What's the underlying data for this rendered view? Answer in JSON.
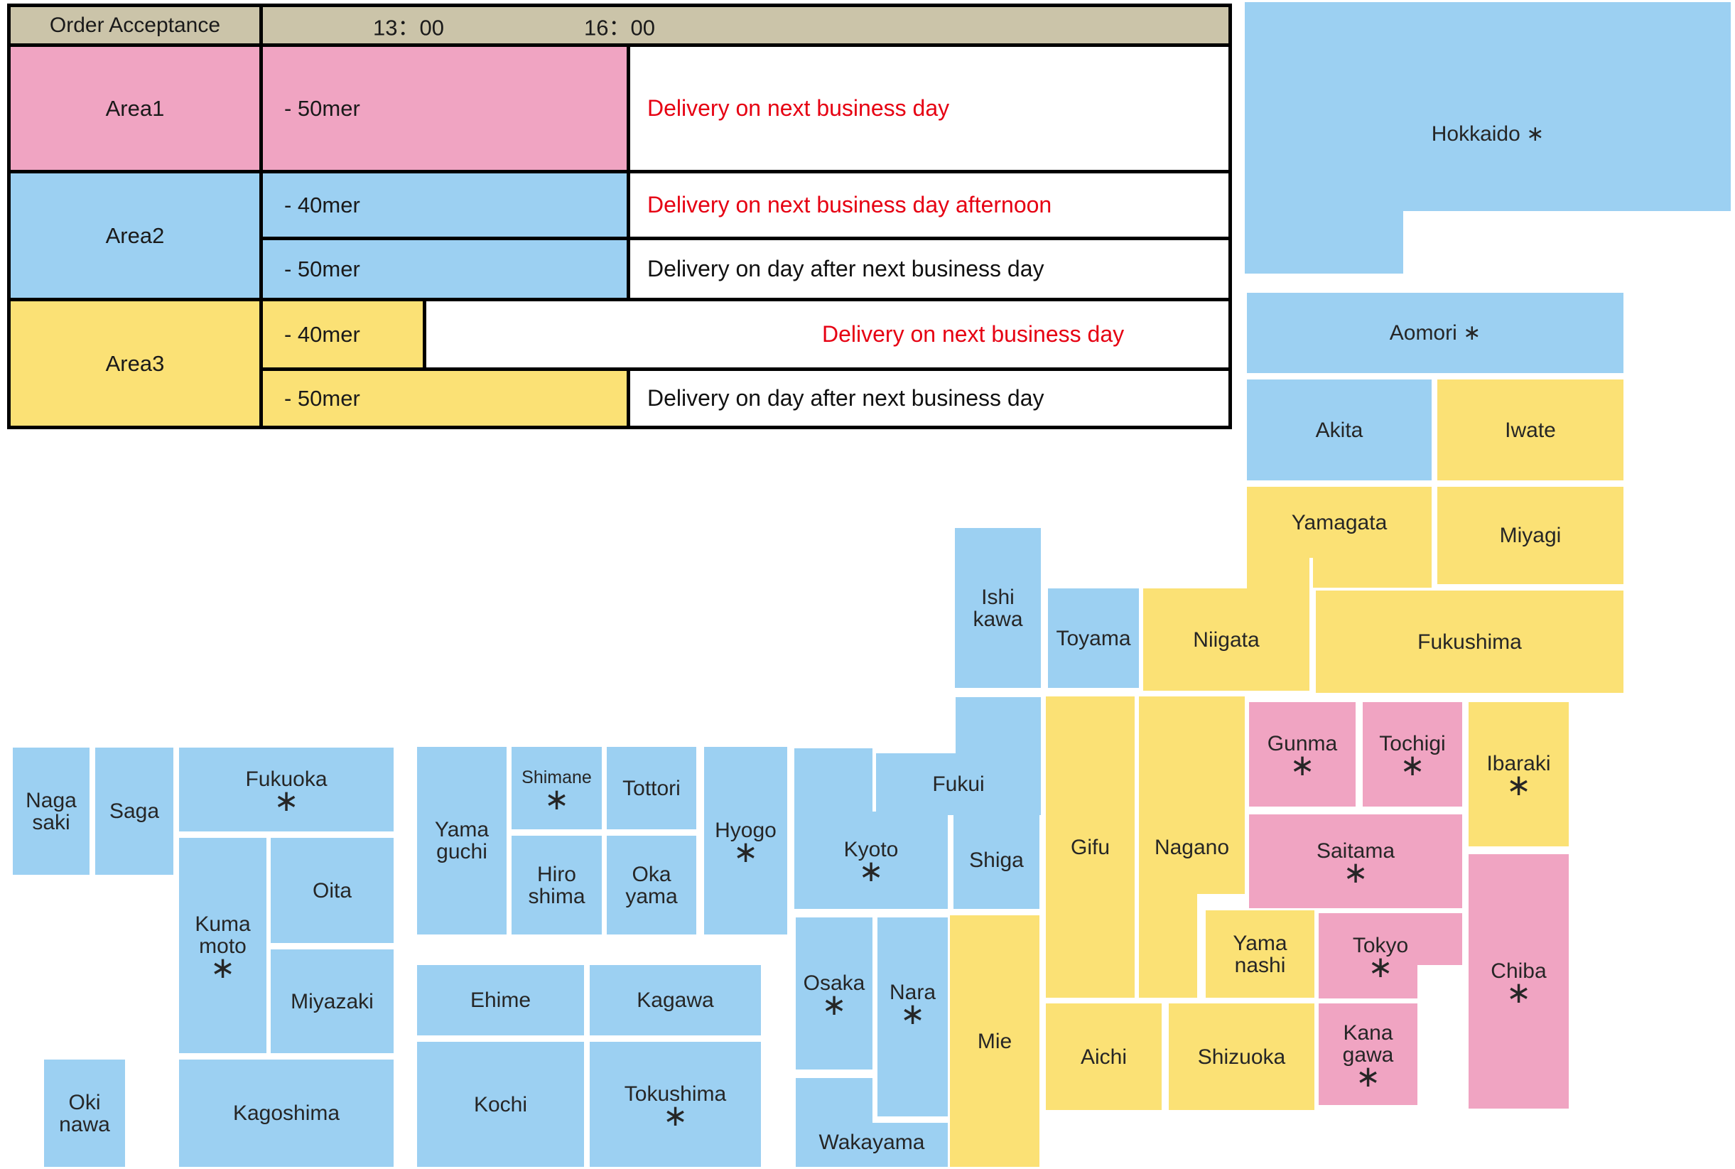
{
  "colors": {
    "area1": "#F0A4C2",
    "area2": "#9CD0F2",
    "area3": "#FBE175",
    "header_tan": "#CBC4A9",
    "red_text": "#E60012",
    "border": "#000000"
  },
  "table": {
    "header": {
      "col1": "Order Acceptance",
      "time1": "13：00",
      "time2": "16：00"
    },
    "rows": [
      {
        "area": "Area1",
        "cells": [
          {
            "size": "- 50mer",
            "delivery": "Delivery on next business day",
            "delivery_color": "red"
          }
        ]
      },
      {
        "area": "Area2",
        "cells": [
          {
            "size": "- 40mer",
            "delivery": "Delivery on next business day afternoon",
            "delivery_color": "red"
          },
          {
            "size": "- 50mer",
            "delivery": "Delivery on day after next business day",
            "delivery_color": "black"
          }
        ]
      },
      {
        "area": "Area3",
        "cells": [
          {
            "size": "- 40mer",
            "delivery": "Delivery on next business day",
            "delivery_color": "red"
          },
          {
            "size": "- 50mer",
            "delivery": "Delivery on day after next business day",
            "delivery_color": "black"
          }
        ]
      }
    ]
  },
  "map": {
    "legend_note": "asterisk marker shown as ∗ after/below prefecture names",
    "prefectures": [
      {
        "id": "hokkaido",
        "area": 2,
        "label_lines": [
          "Hokkaido ∗"
        ],
        "rects": [
          [
            1752,
            3,
            684,
            294
          ],
          [
            1752,
            296,
            223,
            89
          ]
        ],
        "label_box": [
          1752,
          128,
          684,
          120
        ]
      },
      {
        "id": "aomori",
        "area": 2,
        "label_lines": [
          "Aomori ∗"
        ],
        "rects": [
          [
            1755,
            412,
            530,
            113
          ]
        ]
      },
      {
        "id": "akita",
        "area": 2,
        "label_lines": [
          "Akita"
        ],
        "rects": [
          [
            1755,
            534,
            260,
            142
          ]
        ]
      },
      {
        "id": "iwate",
        "area": 3,
        "label_lines": [
          "Iwate"
        ],
        "rects": [
          [
            2023,
            534,
            262,
            142
          ]
        ]
      },
      {
        "id": "yamagata",
        "area": 3,
        "label_lines": [
          "Yamagata"
        ],
        "rects": [
          [
            1755,
            685,
            260,
            100
          ],
          [
            1848,
            784,
            167,
            43
          ]
        ]
      },
      {
        "id": "miyagi",
        "area": 3,
        "label_lines": [
          "Miyagi"
        ],
        "rects": [
          [
            2023,
            685,
            262,
            137
          ]
        ]
      },
      {
        "id": "fukushima",
        "area": 3,
        "label_lines": [
          "Fukushima"
        ],
        "rects": [
          [
            1852,
            831,
            433,
            144
          ]
        ]
      },
      {
        "id": "niigata",
        "area": 3,
        "label_lines": [
          "Niigata"
        ],
        "rects": [
          [
            1609,
            828,
            234,
            144
          ],
          [
            1755,
            785,
            88,
            44
          ]
        ]
      },
      {
        "id": "ishikawa",
        "area": 2,
        "label_lines": [
          "Ishi",
          "kawa"
        ],
        "rects": [
          [
            1344,
            743,
            121,
            225
          ]
        ]
      },
      {
        "id": "toyama",
        "area": 2,
        "label_lines": [
          "Toyama"
        ],
        "rects": [
          [
            1475,
            828,
            128,
            140
          ]
        ]
      },
      {
        "id": "fukui",
        "area": 2,
        "label_lines": [
          "Fukui"
        ],
        "rects": [
          [
            1345,
            981,
            120,
            166
          ],
          [
            1233,
            1060,
            113,
            87
          ]
        ],
        "label_box": [
          1233,
          1060,
          232,
          87
        ]
      },
      {
        "id": "gifu",
        "area": 3,
        "label_lines": [
          "Gifu"
        ],
        "rects": [
          [
            1472,
            980,
            125,
            424
          ]
        ]
      },
      {
        "id": "nagano",
        "area": 3,
        "label_lines": [
          "Nagano"
        ],
        "rects": [
          [
            1603,
            980,
            149,
            278
          ],
          [
            1603,
            1257,
            82,
            147
          ]
        ],
        "label_box": [
          1603,
          980,
          149,
          424
        ]
      },
      {
        "id": "gunma",
        "area": 1,
        "label_lines": [
          "Gunma",
          "∗"
        ],
        "rects": [
          [
            1758,
            988,
            150,
            147
          ]
        ]
      },
      {
        "id": "tochigi",
        "area": 1,
        "label_lines": [
          "Tochigi",
          "∗"
        ],
        "rects": [
          [
            1918,
            988,
            140,
            147
          ]
        ]
      },
      {
        "id": "ibaraki",
        "area": 3,
        "label_lines": [
          "Ibaraki",
          "∗"
        ],
        "rects": [
          [
            2067,
            988,
            141,
            203
          ]
        ]
      },
      {
        "id": "saitama",
        "area": 1,
        "label_lines": [
          "Saitama",
          "∗"
        ],
        "rects": [
          [
            1758,
            1146,
            300,
            132
          ]
        ]
      },
      {
        "id": "chiba",
        "area": 1,
        "label_lines": [
          "Chiba",
          "∗"
        ],
        "rects": [
          [
            2067,
            1202,
            141,
            358
          ]
        ]
      },
      {
        "id": "tokyo",
        "area": 1,
        "label_lines": [
          "Tokyo",
          "∗"
        ],
        "rects": [
          [
            1856,
            1285,
            139,
            120
          ],
          [
            1994,
            1285,
            64,
            73
          ]
        ],
        "label_box": [
          1856,
          1285,
          174,
          120
        ]
      },
      {
        "id": "kanagawa",
        "area": 1,
        "label_lines": [
          "Kana",
          "gawa",
          "∗"
        ],
        "rects": [
          [
            1856,
            1412,
            139,
            143
          ]
        ]
      },
      {
        "id": "yamanashi",
        "area": 3,
        "label_lines": [
          "Yama",
          "nashi"
        ],
        "rects": [
          [
            1697,
            1281,
            153,
            123
          ]
        ]
      },
      {
        "id": "shizuoka",
        "area": 3,
        "label_lines": [
          "Shizuoka"
        ],
        "rects": [
          [
            1645,
            1412,
            205,
            150
          ]
        ]
      },
      {
        "id": "aichi",
        "area": 3,
        "label_lines": [
          "Aichi"
        ],
        "rects": [
          [
            1472,
            1412,
            163,
            150
          ]
        ]
      },
      {
        "id": "mie",
        "area": 3,
        "label_lines": [
          "Mie"
        ],
        "rects": [
          [
            1337,
            1288,
            126,
            354
          ]
        ]
      },
      {
        "id": "shiga",
        "area": 2,
        "label_lines": [
          "Shiga"
        ],
        "rects": [
          [
            1342,
            1142,
            121,
            137
          ]
        ]
      },
      {
        "id": "kyoto",
        "area": 2,
        "label_lines": [
          "Kyoto",
          "∗"
        ],
        "rects": [
          [
            1118,
            1053,
            110,
            226
          ],
          [
            1227,
            1142,
            107,
            137
          ]
        ],
        "label_box": [
          1118,
          1142,
          216,
          137
        ]
      },
      {
        "id": "osaka",
        "area": 2,
        "label_lines": [
          "Osaka",
          "∗"
        ],
        "rects": [
          [
            1120,
            1291,
            108,
            214
          ]
        ]
      },
      {
        "id": "nara",
        "area": 2,
        "label_lines": [
          "Nara",
          "∗"
        ],
        "rects": [
          [
            1235,
            1291,
            99,
            280
          ]
        ],
        "label_box": [
          1235,
          1291,
          99,
          240
        ]
      },
      {
        "id": "wakayama",
        "area": 2,
        "label_lines": [
          "Wakayama"
        ],
        "rects": [
          [
            1120,
            1517,
            108,
            125
          ],
          [
            1227,
            1580,
            107,
            62
          ]
        ],
        "label_box": [
          1120,
          1572,
          214,
          70
        ]
      },
      {
        "id": "hyogo",
        "area": 2,
        "label_lines": [
          "Hyogo",
          "∗"
        ],
        "rects": [
          [
            991,
            1051,
            117,
            264
          ]
        ]
      },
      {
        "id": "tottori",
        "area": 2,
        "label_lines": [
          "Tottori"
        ],
        "rects": [
          [
            854,
            1051,
            126,
            116
          ]
        ]
      },
      {
        "id": "shimane",
        "area": 2,
        "label_lines": [
          "Shimane",
          "∗"
        ],
        "rects": [
          [
            720,
            1051,
            127,
            116
          ]
        ],
        "font": 25
      },
      {
        "id": "okayama",
        "area": 2,
        "label_lines": [
          "Oka",
          "yama"
        ],
        "rects": [
          [
            854,
            1176,
            126,
            139
          ]
        ]
      },
      {
        "id": "hiroshima",
        "area": 2,
        "label_lines": [
          "Hiro",
          "shima"
        ],
        "rects": [
          [
            720,
            1176,
            127,
            139
          ]
        ]
      },
      {
        "id": "yamaguchi",
        "area": 2,
        "label_lines": [
          "Yama",
          "guchi"
        ],
        "rects": [
          [
            587,
            1051,
            126,
            264
          ]
        ]
      },
      {
        "id": "kagawa",
        "area": 2,
        "label_lines": [
          "Kagawa"
        ],
        "rects": [
          [
            830,
            1358,
            241,
            99
          ]
        ]
      },
      {
        "id": "ehime",
        "area": 2,
        "label_lines": [
          "Ehime"
        ],
        "rects": [
          [
            587,
            1358,
            235,
            99
          ]
        ]
      },
      {
        "id": "tokushima",
        "area": 2,
        "label_lines": [
          "Tokushima",
          "∗"
        ],
        "rects": [
          [
            830,
            1466,
            241,
            176
          ]
        ]
      },
      {
        "id": "kochi",
        "area": 2,
        "label_lines": [
          "Kochi"
        ],
        "rects": [
          [
            587,
            1466,
            235,
            176
          ]
        ]
      },
      {
        "id": "fukuoka",
        "area": 2,
        "label_lines": [
          "Fukuoka",
          "∗"
        ],
        "rects": [
          [
            252,
            1052,
            302,
            118
          ]
        ]
      },
      {
        "id": "saga",
        "area": 2,
        "label_lines": [
          "Saga"
        ],
        "rects": [
          [
            134,
            1052,
            110,
            179
          ]
        ]
      },
      {
        "id": "nagasaki",
        "area": 2,
        "label_lines": [
          "Naga",
          "saki"
        ],
        "rects": [
          [
            18,
            1052,
            108,
            179
          ]
        ]
      },
      {
        "id": "kumamoto",
        "area": 2,
        "label_lines": [
          "Kuma",
          "moto",
          "∗"
        ],
        "rects": [
          [
            252,
            1179,
            123,
            303
          ]
        ]
      },
      {
        "id": "oita",
        "area": 2,
        "label_lines": [
          "Oita"
        ],
        "rects": [
          [
            381,
            1179,
            173,
            148
          ]
        ]
      },
      {
        "id": "miyazaki",
        "area": 2,
        "label_lines": [
          "Miyazaki"
        ],
        "rects": [
          [
            381,
            1336,
            173,
            146
          ]
        ]
      },
      {
        "id": "kagoshima",
        "area": 2,
        "label_lines": [
          "Kagoshima"
        ],
        "rects": [
          [
            252,
            1491,
            302,
            151
          ]
        ]
      },
      {
        "id": "okinawa",
        "area": 2,
        "label_lines": [
          "Oki",
          "nawa"
        ],
        "rects": [
          [
            62,
            1491,
            114,
            151
          ]
        ]
      }
    ]
  }
}
